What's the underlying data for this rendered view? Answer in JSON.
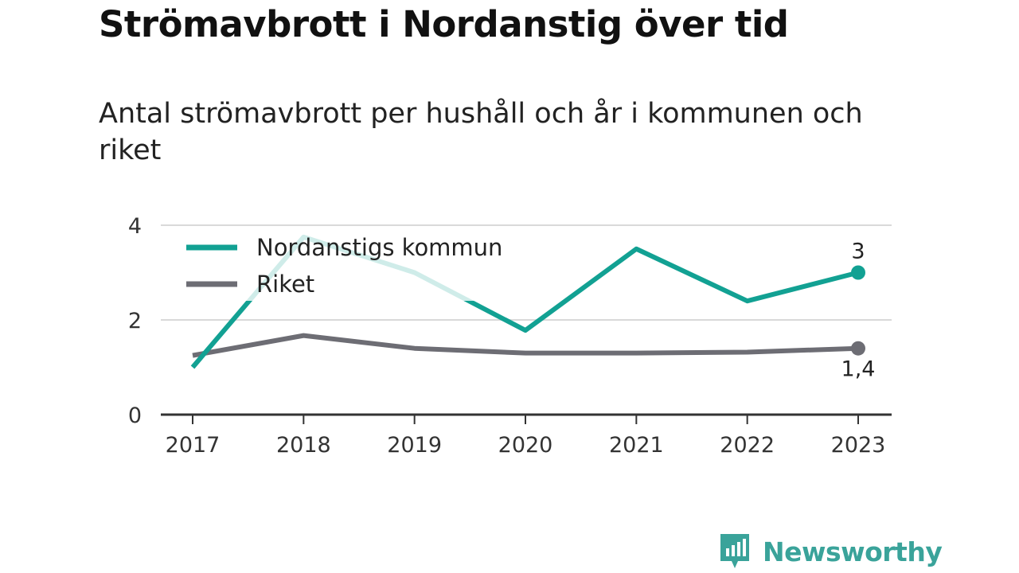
{
  "chart_data": {
    "type": "line",
    "title": "Strömavbrott i Nordanstig över tid",
    "subtitle": "Antal strömavbrott per hushåll och år i kommunen och riket",
    "categories": [
      "2017",
      "2018",
      "2019",
      "2020",
      "2021",
      "2022",
      "2023"
    ],
    "ylim": [
      0,
      4
    ],
    "yticks": [
      "0",
      "2",
      "4"
    ],
    "grid": true,
    "legend_placement": "top-left",
    "series": [
      {
        "name": "Nordanstigs kommun",
        "color": "#12a193",
        "values": [
          1.0,
          3.75,
          3.0,
          1.78,
          3.5,
          2.4,
          3.0
        ],
        "end_label": "3"
      },
      {
        "name": "Riket",
        "color": "#6d6d74",
        "values": [
          1.25,
          1.67,
          1.4,
          1.3,
          1.3,
          1.32,
          1.4
        ],
        "end_label": "1,4"
      }
    ]
  },
  "brand": {
    "name": "Newsworthy",
    "color": "#3aa39a"
  }
}
